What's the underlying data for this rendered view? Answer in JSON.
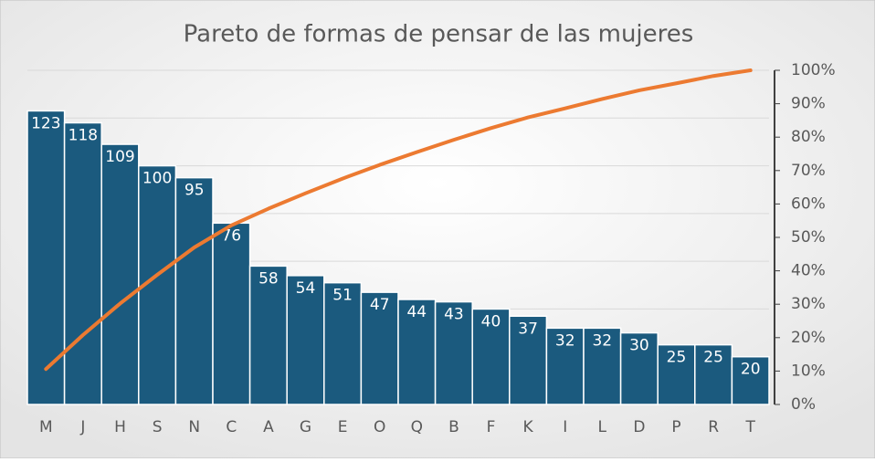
{
  "chart_data": {
    "type": "pareto",
    "title": "Pareto de formas de pensar de las mujeres",
    "categories": [
      "M",
      "J",
      "H",
      "S",
      "N",
      "C",
      "A",
      "G",
      "E",
      "O",
      "Q",
      "B",
      "F",
      "K",
      "I",
      "L",
      "D",
      "P",
      "R",
      "T"
    ],
    "series": [
      {
        "color": "#1b5a7e",
        "values": [
          123,
          118,
          109,
          100,
          95,
          76,
          58,
          54,
          51,
          47,
          44,
          43,
          40,
          37,
          32,
          32,
          30,
          25,
          25,
          20
        ]
      },
      {
        "color": "#ec7a31",
        "axis": "y2",
        "values": [
          10.6,
          20.8,
          30.2,
          38.8,
          47.0,
          53.6,
          58.6,
          63.2,
          67.6,
          71.7,
          75.5,
          79.2,
          82.7,
          85.9,
          88.6,
          91.4,
          94.0,
          96.1,
          98.3,
          100
        ]
      }
    ],
    "ylim": [
      0,
      140
    ],
    "yticks": [
      0,
      20,
      40,
      60,
      80,
      100,
      120,
      140
    ],
    "grid": true,
    "y2lim": [
      0,
      100
    ],
    "y2ticks": [
      {
        "value": 0,
        "label": "0%"
      },
      {
        "value": 10,
        "label": "10%"
      },
      {
        "value": 20,
        "label": "20%"
      },
      {
        "value": 30,
        "label": "30%"
      },
      {
        "value": 40,
        "label": "40%"
      },
      {
        "value": 50,
        "label": "50%"
      },
      {
        "value": 60,
        "label": "60%"
      },
      {
        "value": 70,
        "label": "70%"
      },
      {
        "value": 80,
        "label": "80%"
      },
      {
        "value": 90,
        "label": "90%"
      },
      {
        "value": 100,
        "label": "100%"
      }
    ]
  }
}
